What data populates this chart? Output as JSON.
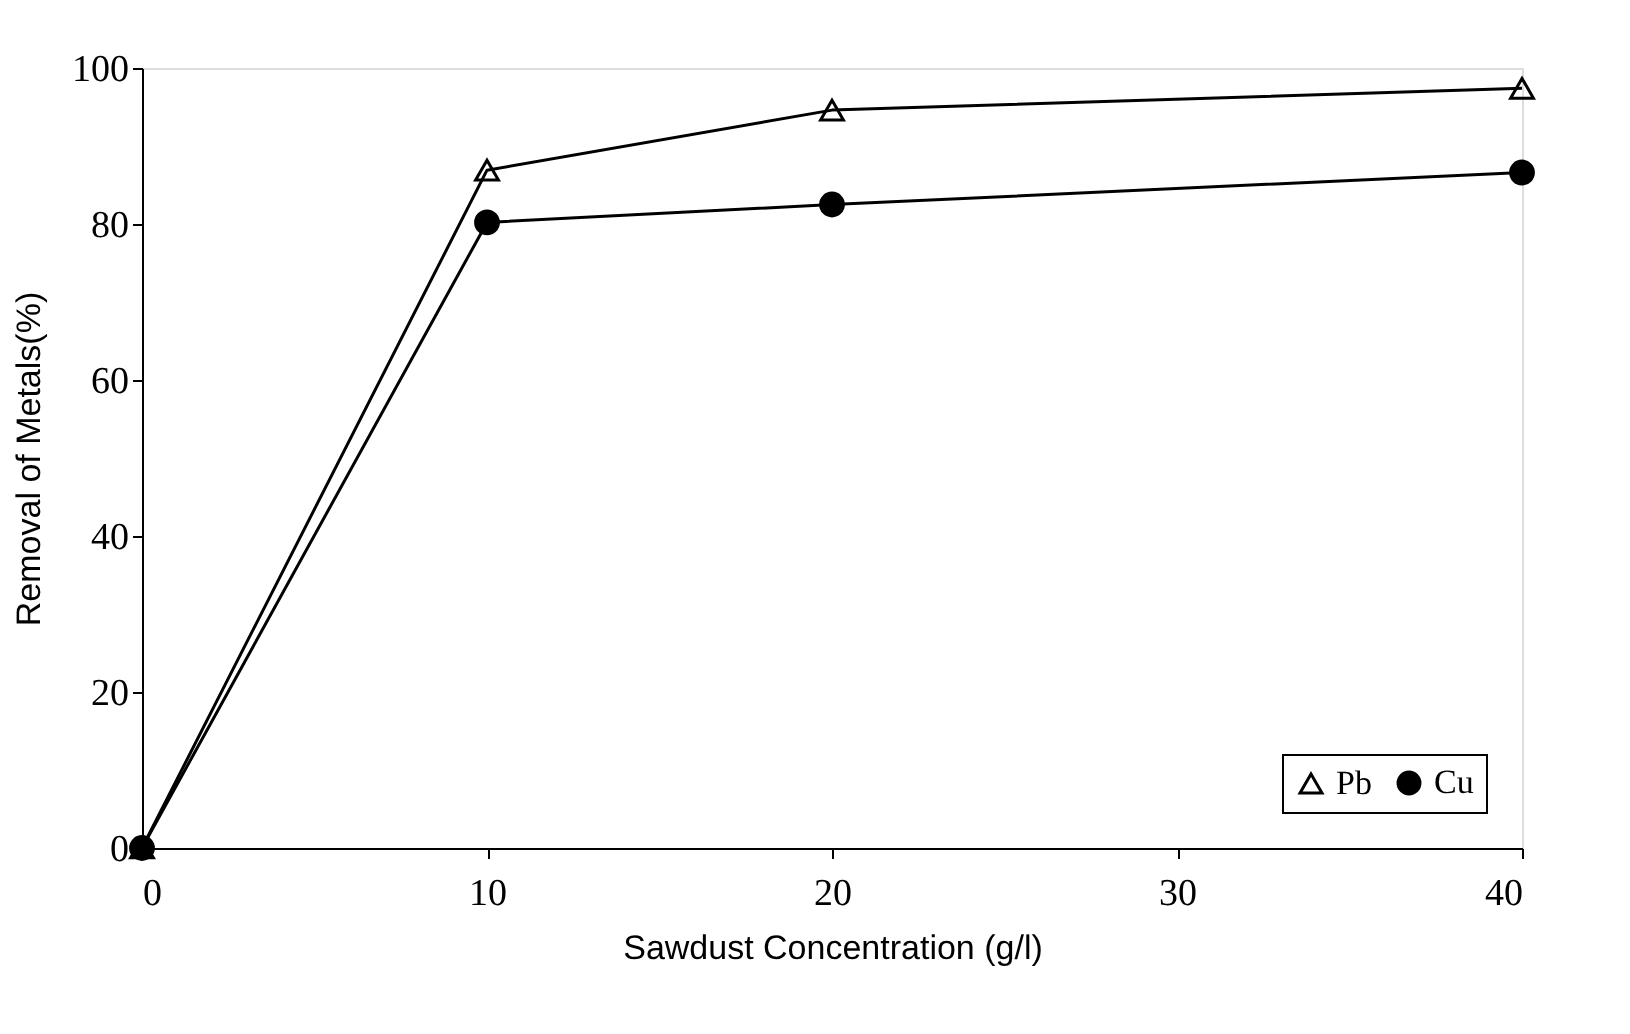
{
  "chart_data": {
    "type": "line",
    "xlabel": "Sawdust Concentration (g/l)",
    "ylabel": "Removal of Metals(%)",
    "x": [
      0,
      10,
      20,
      40
    ],
    "series": [
      {
        "name": "Pb",
        "color": "#000000",
        "marker": "triangle",
        "values": [
          0,
          86.9,
          94.6,
          97.4
        ]
      },
      {
        "name": "Cu",
        "color": "#000000",
        "marker": "circle",
        "values": [
          0,
          80.2,
          82.5,
          86.6
        ]
      }
    ],
    "xlim": [
      0,
      40
    ],
    "xticks": [
      0,
      10,
      20,
      30,
      40
    ],
    "ylim": [
      0,
      100
    ],
    "yticks": [
      0,
      20,
      40,
      60,
      80,
      100
    ],
    "grid": false,
    "legend": "bottom right",
    "line_style": "solid"
  }
}
